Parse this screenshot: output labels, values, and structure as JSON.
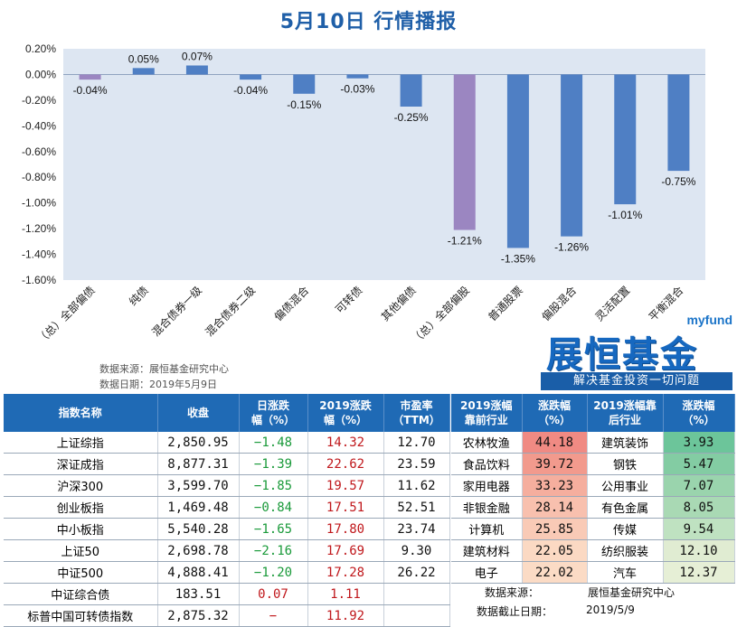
{
  "title": "5月10日  行情播报",
  "chart_data": {
    "type": "bar",
    "categories": [
      "（总）全部偏债",
      "纯债",
      "混合债券一级",
      "混合债券二级",
      "偏债混合",
      "可转债",
      "其他偏债",
      "（总）全部偏股",
      "普通股票",
      "偏股混合",
      "灵活配置",
      "平衡混合"
    ],
    "values": [
      -0.04,
      0.05,
      0.07,
      -0.04,
      -0.15,
      -0.03,
      -0.25,
      -1.21,
      -1.35,
      -1.26,
      -1.01,
      -0.75
    ],
    "value_labels": [
      "-0.04%",
      "0.05%",
      "0.07%",
      "-0.04%",
      "-0.15%",
      "-0.03%",
      "-0.25%",
      "-1.21%",
      "-1.35%",
      "-1.26%",
      "-1.01%",
      "-0.75%"
    ],
    "ylim": [
      -1.6,
      0.2
    ],
    "yticks": [
      "0.20%",
      "0.00%",
      "-0.20%",
      "-0.40%",
      "-0.60%",
      "-0.80%",
      "-1.00%",
      "-1.20%",
      "-1.40%",
      "-1.60%"
    ],
    "bar_colors": [
      "#9b86c1",
      "#4f7fc4",
      "#4f7fc4",
      "#4f7fc4",
      "#4f7fc4",
      "#4f7fc4",
      "#4f7fc4",
      "#9b86c1",
      "#4f7fc4",
      "#4f7fc4",
      "#4f7fc4",
      "#4f7fc4"
    ],
    "plot_bg": "#dde6f2"
  },
  "source": {
    "line1": "数据来源：展恒基金研究中心",
    "line2": "数据日期：2019年5月9日"
  },
  "logo": {
    "sub": "myfund",
    "main": "展恒基金",
    "slogan": "解决基金投资一切问题"
  },
  "index_table": {
    "headers": [
      "指数名称",
      "收盘",
      "日涨跌\n幅（%）",
      "2019涨跌\n幅（%）",
      "市盈率\n（TTM）"
    ],
    "rows": [
      {
        "name": "上证综指",
        "close": "2,850.95",
        "day": "−1.48",
        "ytd": "14.32",
        "pe": "12.70",
        "day_color": "neg",
        "ytd_color": "pos"
      },
      {
        "name": "深证成指",
        "close": "8,877.31",
        "day": "−1.39",
        "ytd": "22.62",
        "pe": "23.59",
        "day_color": "neg",
        "ytd_color": "pos"
      },
      {
        "name": "沪深300",
        "close": "3,599.70",
        "day": "−1.85",
        "ytd": "19.57",
        "pe": "11.62",
        "day_color": "neg",
        "ytd_color": "pos"
      },
      {
        "name": "创业板指",
        "close": "1,469.48",
        "day": "−0.84",
        "ytd": "17.51",
        "pe": "52.51",
        "day_color": "neg",
        "ytd_color": "pos"
      },
      {
        "name": "中小板指",
        "close": "5,540.28",
        "day": "−1.65",
        "ytd": "17.80",
        "pe": "23.74",
        "day_color": "neg",
        "ytd_color": "pos"
      },
      {
        "name": "上证50",
        "close": "2,698.78",
        "day": "−2.16",
        "ytd": "17.69",
        "pe": "9.30",
        "day_color": "neg",
        "ytd_color": "pos"
      },
      {
        "name": "中证500",
        "close": "4,888.41",
        "day": "−1.20",
        "ytd": "17.28",
        "pe": "26.22",
        "day_color": "neg",
        "ytd_color": "pos"
      },
      {
        "name": "中证综合债",
        "close": "183.51",
        "day": "0.07",
        "ytd": "1.11",
        "pe": "",
        "day_color": "pos",
        "ytd_color": "pos"
      },
      {
        "name": "标普中国可转债指数",
        "close": "2,875.32",
        "day": "−",
        "ytd": "11.92",
        "pe": "",
        "day_color": "pos",
        "ytd_color": "pos"
      }
    ]
  },
  "industry_table": {
    "headers": [
      "2019涨幅\n靠前行业",
      "涨跌幅\n（%）",
      "2019涨幅靠\n后行业",
      "涨跌幅\n（%）"
    ],
    "rows": [
      {
        "top": "农林牧渔",
        "top_val": "44.18",
        "top_bg": "#f08a83",
        "bot": "建筑装饰",
        "bot_val": "3.93",
        "bot_bg": "#6cc59a"
      },
      {
        "top": "食品饮料",
        "top_val": "39.72",
        "top_bg": "#f29a8d",
        "bot": "钢铁",
        "bot_val": "5.47",
        "bot_bg": "#83cca3"
      },
      {
        "top": "家用电器",
        "top_val": "33.23",
        "top_bg": "#f5ae9e",
        "bot": "公用事业",
        "bot_val": "7.07",
        "bot_bg": "#9ad4ad"
      },
      {
        "top": "非银金融",
        "top_val": "28.14",
        "top_bg": "#f8c0ae",
        "bot": "有色金属",
        "bot_val": "8.05",
        "bot_bg": "#a9d9b4"
      },
      {
        "top": "计算机",
        "top_val": "25.85",
        "top_bg": "#f9cab6",
        "bot": "传媒",
        "bot_val": "9.54",
        "bot_bg": "#bfe2c1"
      },
      {
        "top": "建筑材料",
        "top_val": "22.05",
        "top_bg": "#fbd9c3",
        "bot": "纺织服装",
        "bot_val": "12.10",
        "bot_bg": "#e0ecd2"
      },
      {
        "top": "电子",
        "top_val": "22.02",
        "top_bg": "#fbdbc5",
        "bot": "汽车",
        "bot_val": "12.37",
        "bot_bg": "#e6efd6"
      }
    ]
  },
  "footer": {
    "src_label": "数据来源：",
    "src_value": "展恒基金研究中心",
    "date_label": "数据截止日期：",
    "date_value": "2019/5/9"
  }
}
